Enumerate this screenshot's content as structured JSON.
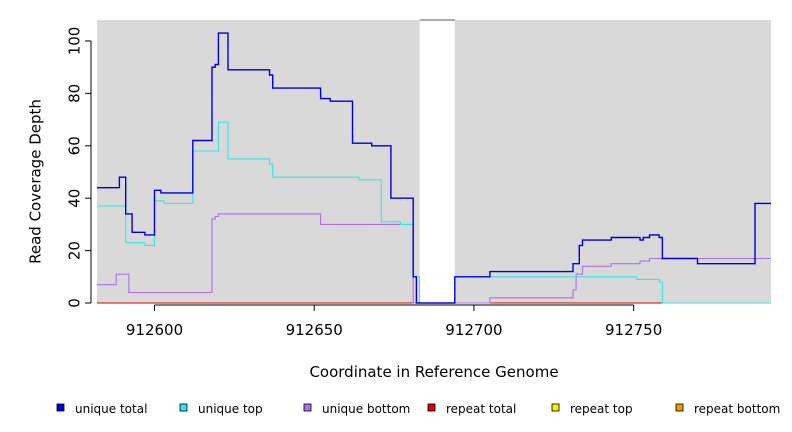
{
  "chart_data": {
    "type": "line",
    "title": "",
    "xlabel": "Coordinate in Reference Genome",
    "ylabel": "Read Coverage Depth",
    "xlim": [
      912582,
      912793
    ],
    "ylim": [
      0,
      108
    ],
    "x_ticks": [
      912600,
      912650,
      912700,
      912750
    ],
    "y_ticks": [
      0,
      20,
      40,
      60,
      80,
      100
    ],
    "background_color": "#d9d9d9",
    "gap": [
      912683,
      912694
    ],
    "grid": false,
    "legend_position": "bottom",
    "series": [
      {
        "name": "unique total",
        "color": "#0000dd",
        "step": true,
        "points": [
          [
            912582,
            44
          ],
          [
            912589,
            48
          ],
          [
            912591,
            34
          ],
          [
            912593,
            27
          ],
          [
            912597,
            26
          ],
          [
            912600,
            43
          ],
          [
            912602,
            42
          ],
          [
            912612,
            62
          ],
          [
            912618,
            90
          ],
          [
            912619,
            91
          ],
          [
            912620,
            103
          ],
          [
            912623,
            89
          ],
          [
            912636,
            87
          ],
          [
            912637,
            82
          ],
          [
            912652,
            78
          ],
          [
            912655,
            77
          ],
          [
            912662,
            61
          ],
          [
            912668,
            60
          ],
          [
            912674,
            40
          ],
          [
            912681,
            10
          ],
          [
            912682,
            0
          ],
          [
            912694,
            10
          ],
          [
            912705,
            12
          ],
          [
            912731,
            15
          ],
          [
            912733,
            22
          ],
          [
            912734,
            24
          ],
          [
            912743,
            25
          ],
          [
            912752,
            24
          ],
          [
            912753,
            25
          ],
          [
            912755,
            26
          ],
          [
            912758,
            25
          ],
          [
            912759,
            17
          ],
          [
            912770,
            15
          ],
          [
            912788,
            38
          ],
          [
            912793,
            38
          ]
        ]
      },
      {
        "name": "unique top",
        "color": "#33e6e6",
        "step": true,
        "points": [
          [
            912582,
            37
          ],
          [
            912591,
            23
          ],
          [
            912597,
            22
          ],
          [
            912600,
            39
          ],
          [
            912603,
            38
          ],
          [
            912612,
            58
          ],
          [
            912620,
            69
          ],
          [
            912623,
            55
          ],
          [
            912636,
            53
          ],
          [
            912637,
            48
          ],
          [
            912664,
            47
          ],
          [
            912671,
            31
          ],
          [
            912677,
            30
          ],
          [
            912681,
            10
          ],
          [
            912683,
            0
          ],
          [
            912694,
            10
          ],
          [
            912751,
            9
          ],
          [
            912758,
            8
          ],
          [
            912759,
            0
          ],
          [
            912793,
            0
          ]
        ]
      },
      {
        "name": "unique bottom",
        "color": "#b070e8",
        "step": true,
        "points": [
          [
            912582,
            7
          ],
          [
            912588,
            11
          ],
          [
            912592,
            4
          ],
          [
            912618,
            32
          ],
          [
            912619,
            33
          ],
          [
            912620,
            34
          ],
          [
            912652,
            30
          ],
          [
            912681,
            0
          ],
          [
            912705,
            2
          ],
          [
            912731,
            5
          ],
          [
            912732,
            11
          ],
          [
            912734,
            14
          ],
          [
            912743,
            15
          ],
          [
            912752,
            16
          ],
          [
            912755,
            17
          ],
          [
            912759,
            17
          ],
          [
            912793,
            17
          ]
        ]
      },
      {
        "name": "repeat total",
        "color": "#dd0000",
        "step": true,
        "points": [
          [
            912582,
            0
          ],
          [
            912793,
            0
          ]
        ]
      },
      {
        "name": "repeat top",
        "color": "#f0f000",
        "step": true,
        "points": [
          [
            912582,
            0
          ],
          [
            912793,
            0
          ]
        ]
      },
      {
        "name": "repeat bottom",
        "color": "#f09a00",
        "step": true,
        "points": [
          [
            912582,
            0
          ],
          [
            912793,
            0
          ]
        ]
      }
    ]
  }
}
